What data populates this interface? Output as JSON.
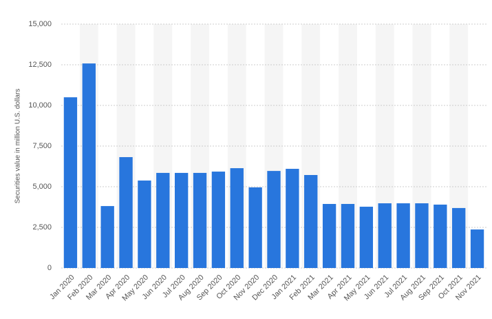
{
  "chart_data": {
    "type": "bar",
    "y_label": "Securities value in million U.S. dollars",
    "categories": [
      "Jan 2020",
      "Feb 2020",
      "Mar 2020",
      "Apr 2020",
      "May 2020",
      "Jun 2020",
      "Jul 2020",
      "Aug 2020",
      "Sep 2020",
      "Oct 2020",
      "Nov 2020",
      "Dec 2020",
      "Jan 2021",
      "Feb 2021",
      "Mar 2021",
      "Apr 2021",
      "May 2021",
      "Jun 2021",
      "Jul 2021",
      "Aug 2021",
      "Sep 2021",
      "Oct 2021",
      "Nov 2021"
    ],
    "values": [
      10500,
      12580,
      3810,
      6820,
      5380,
      5850,
      5850,
      5850,
      5930,
      6140,
      4960,
      5970,
      6100,
      5720,
      3940,
      3940,
      3770,
      3980,
      3980,
      3980,
      3900,
      3690,
      2370
    ],
    "color": "#2876dd",
    "ylim": [
      0,
      15000
    ],
    "yticks": [
      0,
      {
        "value": 2500,
        "label": "2,500"
      },
      {
        "value": 5000,
        "label": "5,000"
      },
      {
        "value": 7500,
        "label": "7,500"
      },
      {
        "value": 10000,
        "label": "10,000"
      },
      {
        "value": 12500,
        "label": "12,500"
      },
      {
        "value": 15000,
        "label": "15,000"
      }
    ],
    "grid": true
  }
}
